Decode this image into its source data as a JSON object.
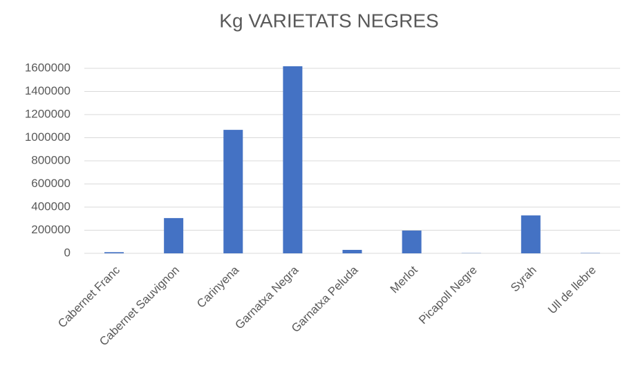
{
  "chart_data": {
    "type": "bar",
    "title": "Kg VARIETATS NEGRES",
    "categories": [
      "Cabernet Franc",
      "Cabernet Sauvignon",
      "Carinyena",
      "Garnatxa Negra",
      "Garnatxa Peluda",
      "Merlot",
      "Picapoll Negre",
      "Syrah",
      "Ull de llebre"
    ],
    "values": [
      10000,
      305000,
      1068000,
      1618000,
      30000,
      197000,
      2000,
      328000,
      3000
    ],
    "color": "#4472c4",
    "ylim": [
      0,
      1600000
    ],
    "yticks": [
      0,
      200000,
      400000,
      600000,
      800000,
      1000000,
      1200000,
      1400000,
      1600000
    ],
    "grid": true
  }
}
